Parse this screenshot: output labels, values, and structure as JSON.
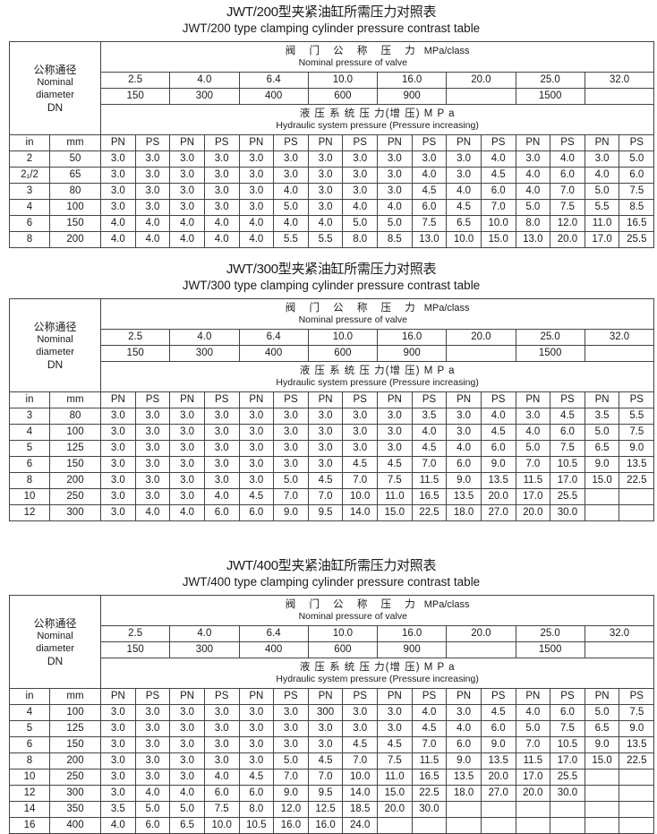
{
  "header_labels": {
    "dn_cn": "公称通径",
    "dn_en1": "Nominal",
    "dn_en2": "diameter",
    "dn_en3": "DN",
    "valve_cn": "阀 门 公 称 压 力",
    "valve_en": "Nominal pressure of valve",
    "valve_unit": "MPa/class",
    "hyd_cn": "液 压 系 统 压 力(增 压) M P a",
    "hyd_en": "Hydraulic system pressure (Pressure increasing)",
    "in": "in",
    "mm": "mm",
    "pn": "PN",
    "ps": "PS"
  },
  "nominal_pressures": [
    "2.5",
    "4.0",
    "6.4",
    "10.0",
    "16.0",
    "20.0",
    "25.0",
    "32.0"
  ],
  "classes": [
    "150",
    "300",
    "400",
    "600",
    "900",
    "",
    "1500",
    ""
  ],
  "tables": [
    {
      "title_cn": "JWT/200型夹紧油缸所需压力对照表",
      "title_en": "JWT/200 type clamping cylinder pressure contrast table",
      "rows": [
        {
          "in": "2",
          "mm": "50",
          "values": [
            "3.0",
            "3.0",
            "3.0",
            "3.0",
            "3.0",
            "3.0",
            "3.0",
            "3.0",
            "3.0",
            "3.0",
            "3.0",
            "4.0",
            "3.0",
            "4.0",
            "3.0",
            "5.0"
          ]
        },
        {
          "in": "2₁/2",
          "mm": "65",
          "values": [
            "3.0",
            "3.0",
            "3.0",
            "3.0",
            "3.0",
            "3.0",
            "3.0",
            "3.0",
            "3.0",
            "4.0",
            "3.0",
            "4.5",
            "4.0",
            "6.0",
            "4.0",
            "6.0"
          ]
        },
        {
          "in": "3",
          "mm": "80",
          "values": [
            "3.0",
            "3.0",
            "3.0",
            "3.0",
            "3.0",
            "4.0",
            "3.0",
            "3.0",
            "3.0",
            "4.5",
            "4.0",
            "6.0",
            "4.0",
            "7.0",
            "5.0",
            "7.5"
          ]
        },
        {
          "in": "4",
          "mm": "100",
          "values": [
            "3.0",
            "3.0",
            "3.0",
            "3.0",
            "3.0",
            "5.0",
            "3.0",
            "4.0",
            "4.0",
            "6.0",
            "4.5",
            "7.0",
            "5.0",
            "7.5",
            "5.5",
            "8.5"
          ]
        },
        {
          "in": "6",
          "mm": "150",
          "values": [
            "4.0",
            "4.0",
            "4.0",
            "4.0",
            "4.0",
            "4.0",
            "4.0",
            "5.0",
            "5.0",
            "7.5",
            "6.5",
            "10.0",
            "8.0",
            "12.0",
            "11.0",
            "16.5"
          ]
        },
        {
          "in": "8",
          "mm": "200",
          "values": [
            "4.0",
            "4.0",
            "4.0",
            "4.0",
            "4.0",
            "5.5",
            "5.5",
            "8.0",
            "8.5",
            "13.0",
            "10.0",
            "15.0",
            "13.0",
            "20.0",
            "17.0",
            "25.5"
          ]
        }
      ]
    },
    {
      "title_cn": "JWT/300型夹紧油缸所需压力对照表",
      "title_en": "JWT/300 type clamping cylinder pressure contrast table",
      "rows": [
        {
          "in": "3",
          "mm": "80",
          "values": [
            "3.0",
            "3.0",
            "3.0",
            "3.0",
            "3.0",
            "3.0",
            "3.0",
            "3.0",
            "3.0",
            "3.5",
            "3.0",
            "4.0",
            "3.0",
            "4.5",
            "3.5",
            "5.5"
          ]
        },
        {
          "in": "4",
          "mm": "100",
          "values": [
            "3.0",
            "3.0",
            "3.0",
            "3.0",
            "3.0",
            "3.0",
            "3.0",
            "3.0",
            "3.0",
            "4.0",
            "3.0",
            "4.5",
            "4.0",
            "6.0",
            "5.0",
            "7.5"
          ]
        },
        {
          "in": "5",
          "mm": "125",
          "values": [
            "3.0",
            "3.0",
            "3.0",
            "3.0",
            "3.0",
            "3.0",
            "3.0",
            "3.0",
            "3.0",
            "4.5",
            "4.0",
            "6.0",
            "5.0",
            "7.5",
            "6.5",
            "9.0"
          ]
        },
        {
          "in": "6",
          "mm": "150",
          "values": [
            "3.0",
            "3.0",
            "3.0",
            "3.0",
            "3.0",
            "3.0",
            "3.0",
            "4.5",
            "4.5",
            "7.0",
            "6.0",
            "9.0",
            "7.0",
            "10.5",
            "9.0",
            "13.5"
          ]
        },
        {
          "in": "8",
          "mm": "200",
          "values": [
            "3.0",
            "3.0",
            "3.0",
            "3.0",
            "3.0",
            "5.0",
            "4.5",
            "7.0",
            "7.5",
            "11.5",
            "9.0",
            "13.5",
            "11.5",
            "17.0",
            "15.0",
            "22.5"
          ]
        },
        {
          "in": "10",
          "mm": "250",
          "values": [
            "3.0",
            "3.0",
            "3.0",
            "4.0",
            "4.5",
            "7.0",
            "7.0",
            "10.0",
            "11.0",
            "16.5",
            "13.5",
            "20.0",
            "17.0",
            "25.5",
            "",
            ""
          ]
        },
        {
          "in": "12",
          "mm": "300",
          "values": [
            "3.0",
            "4.0",
            "4.0",
            "6.0",
            "6.0",
            "9.0",
            "9.5",
            "14.0",
            "15.0",
            "22.5",
            "18.0",
            "27.0",
            "20.0",
            "30.0",
            "",
            ""
          ]
        }
      ]
    },
    {
      "title_cn": "JWT/400型夹紧油缸所需压力对照表",
      "title_en": "JWT/400 type clamping cylinder pressure contrast table",
      "rows": [
        {
          "in": "4",
          "mm": "100",
          "values": [
            "3.0",
            "3.0",
            "3.0",
            "3.0",
            "3.0",
            "3.0",
            "300",
            "3.0",
            "3.0",
            "4.0",
            "3.0",
            "4.5",
            "4.0",
            "6.0",
            "5.0",
            "7.5"
          ]
        },
        {
          "in": "5",
          "mm": "125",
          "values": [
            "3.0",
            "3.0",
            "3.0",
            "3.0",
            "3.0",
            "3.0",
            "3.0",
            "3.0",
            "3.0",
            "4.5",
            "4.0",
            "6.0",
            "5.0",
            "7.5",
            "6.5",
            "9.0"
          ]
        },
        {
          "in": "6",
          "mm": "150",
          "values": [
            "3.0",
            "3.0",
            "3.0",
            "3.0",
            "3.0",
            "3.0",
            "3.0",
            "4.5",
            "4.5",
            "7.0",
            "6.0",
            "9.0",
            "7.0",
            "10.5",
            "9.0",
            "13.5"
          ]
        },
        {
          "in": "8",
          "mm": "200",
          "values": [
            "3.0",
            "3.0",
            "3.0",
            "3.0",
            "3.0",
            "5.0",
            "4.5",
            "7.0",
            "7.5",
            "11.5",
            "9.0",
            "13.5",
            "11.5",
            "17.0",
            "15.0",
            "22.5"
          ]
        },
        {
          "in": "10",
          "mm": "250",
          "values": [
            "3.0",
            "3.0",
            "3.0",
            "4.0",
            "4.5",
            "7.0",
            "7.0",
            "10.0",
            "11.0",
            "16.5",
            "13.5",
            "20.0",
            "17.0",
            "25.5",
            "",
            ""
          ]
        },
        {
          "in": "12",
          "mm": "300",
          "values": [
            "3.0",
            "4.0",
            "4.0",
            "6.0",
            "6.0",
            "9.0",
            "9.5",
            "14.0",
            "15.0",
            "22.5",
            "18.0",
            "27.0",
            "20.0",
            "30.0",
            "",
            ""
          ]
        },
        {
          "in": "14",
          "mm": "350",
          "values": [
            "3.5",
            "5.0",
            "5.0",
            "7.5",
            "8.0",
            "12.0",
            "12.5",
            "18.5",
            "20.0",
            "30.0",
            "",
            "",
            "",
            "",
            "",
            ""
          ]
        },
        {
          "in": "16",
          "mm": "400",
          "values": [
            "4.0",
            "6.0",
            "6.5",
            "10.0",
            "10.5",
            "16.0",
            "16.0",
            "24.0",
            "",
            "",
            "",
            "",
            "",
            "",
            "",
            ""
          ]
        }
      ]
    }
  ]
}
